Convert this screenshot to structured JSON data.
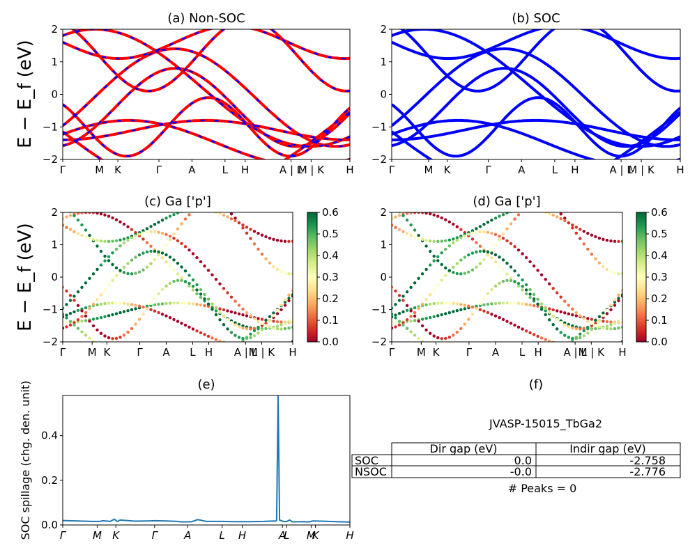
{
  "chart_data": [
    {
      "id": "a",
      "type": "line",
      "title": "(a) Non-SOC",
      "ylabel": "E − E_f (eV)",
      "ylim": [
        -2,
        2
      ],
      "yticks": [
        "2",
        "1",
        "0",
        "−1",
        "−2"
      ],
      "kpath": [
        "Γ",
        "M",
        "K",
        "Γ",
        "A",
        "L",
        "H",
        "A | L",
        "M | K",
        "H"
      ],
      "kpath_pos": [
        0,
        0.128,
        0.192,
        0.335,
        0.45,
        0.565,
        0.635,
        0.795,
        0.865,
        1.0
      ],
      "colors": {
        "band": "#ff0000",
        "overlay": "#0000ff"
      }
    },
    {
      "id": "b",
      "type": "line",
      "title": "(b) SOC",
      "ylim": [
        -2,
        2
      ],
      "yticks": [
        "2",
        "1",
        "0",
        "−1",
        "−2"
      ],
      "kpath": [
        "Γ",
        "M",
        "K",
        "Γ",
        "A",
        "L",
        "H",
        "A | L",
        "M | K",
        "H"
      ],
      "kpath_pos": [
        0,
        0.128,
        0.192,
        0.335,
        0.45,
        0.565,
        0.635,
        0.795,
        0.865,
        1.0
      ],
      "colors": {
        "band": "#0000ff"
      }
    },
    {
      "id": "c",
      "type": "scatter",
      "title": "(c)  Ga ['p']",
      "ylabel": "E − E_f (eV)",
      "ylim": [
        -2,
        2
      ],
      "yticks": [
        "2",
        "1",
        "0",
        "−1",
        "−2"
      ],
      "kpath": [
        "Γ",
        "M",
        "K",
        "Γ",
        "A",
        "L",
        "H",
        "A | L",
        "M | K",
        "H"
      ],
      "kpath_pos": [
        0,
        0.128,
        0.192,
        0.335,
        0.45,
        0.565,
        0.635,
        0.795,
        0.865,
        1.0
      ],
      "colorbar": {
        "min": 0.0,
        "max": 0.6,
        "ticks": [
          "0.6",
          "0.5",
          "0.4",
          "0.3",
          "0.2",
          "0.1",
          "0.0"
        ],
        "colormap": "RdYlGn"
      }
    },
    {
      "id": "d",
      "type": "scatter",
      "title": "(d) Ga ['p']",
      "ylim": [
        -2,
        2
      ],
      "yticks": [
        "2",
        "1",
        "0",
        "−1",
        "−2"
      ],
      "kpath": [
        "Γ",
        "M",
        "K",
        "Γ",
        "A",
        "L",
        "H",
        "A | L",
        "M | K",
        "H"
      ],
      "kpath_pos": [
        0,
        0.128,
        0.192,
        0.335,
        0.45,
        0.565,
        0.635,
        0.795,
        0.865,
        1.0
      ],
      "colorbar": {
        "min": 0.0,
        "max": 0.6,
        "ticks": [
          "0.6",
          "0.5",
          "0.4",
          "0.3",
          "0.2",
          "0.1",
          "0.0"
        ],
        "colormap": "RdYlGn"
      }
    },
    {
      "id": "e",
      "type": "line",
      "title": "(e)",
      "ylabel": "SOC spillage (chg. den. unit)",
      "ylim": [
        0,
        0.58
      ],
      "yticks": [
        "0.4",
        "0.2",
        "0.0"
      ],
      "ytick_values": [
        0.4,
        0.2,
        0.0
      ],
      "kpath": [
        "Γ",
        "M",
        "K",
        "Γ",
        "A",
        "L",
        "H",
        "A",
        "L",
        "M",
        "K",
        "H"
      ],
      "kpath_pos": [
        0,
        0.12,
        0.185,
        0.32,
        0.435,
        0.555,
        0.625,
        0.765,
        0.78,
        0.865,
        0.88,
        1.0
      ],
      "series": [
        {
          "x": [
            0,
            0.05,
            0.1,
            0.13,
            0.14,
            0.165,
            0.18,
            0.19,
            0.2,
            0.25,
            0.3,
            0.32,
            0.36,
            0.4,
            0.41,
            0.43,
            0.45,
            0.47,
            0.5,
            0.55,
            0.6,
            0.65,
            0.7,
            0.74,
            0.7,
            0.735,
            0.745,
            0.75,
            0.755,
            0.77,
            0.78,
            0.79,
            0.8,
            0.84,
            0.85,
            0.86,
            0.87,
            0.9,
            0.95,
            1.0
          ],
          "y": [
            0.02,
            0.018,
            0.016,
            0.016,
            0.019,
            0.016,
            0.026,
            0.015,
            0.022,
            0.017,
            0.018,
            0.019,
            0.018,
            0.016,
            0.014,
            0.014,
            0.015,
            0.024,
            0.016,
            0.016,
            0.015,
            0.015,
            0.016,
            0.017,
            0.016,
            0.018,
            0.02,
            0.58,
            0.022,
            0.015,
            0.016,
            0.022,
            0.014,
            0.015,
            0.014,
            0.014,
            0.018,
            0.017,
            0.015,
            0.013
          ],
          "color": "#1f77b4"
        }
      ]
    }
  ],
  "panel_f": {
    "title": "(f)",
    "material": "JVASP-15015_TbGa2",
    "columns": [
      "Dir gap (eV)",
      "Indir gap (eV)"
    ],
    "rows": [
      {
        "label": "SOC",
        "dir": "0.0",
        "indir": "-2.758"
      },
      {
        "label": "NSOC",
        "dir": "-0.0",
        "indir": "-2.776"
      }
    ],
    "peaks": "# Peaks = 0"
  }
}
